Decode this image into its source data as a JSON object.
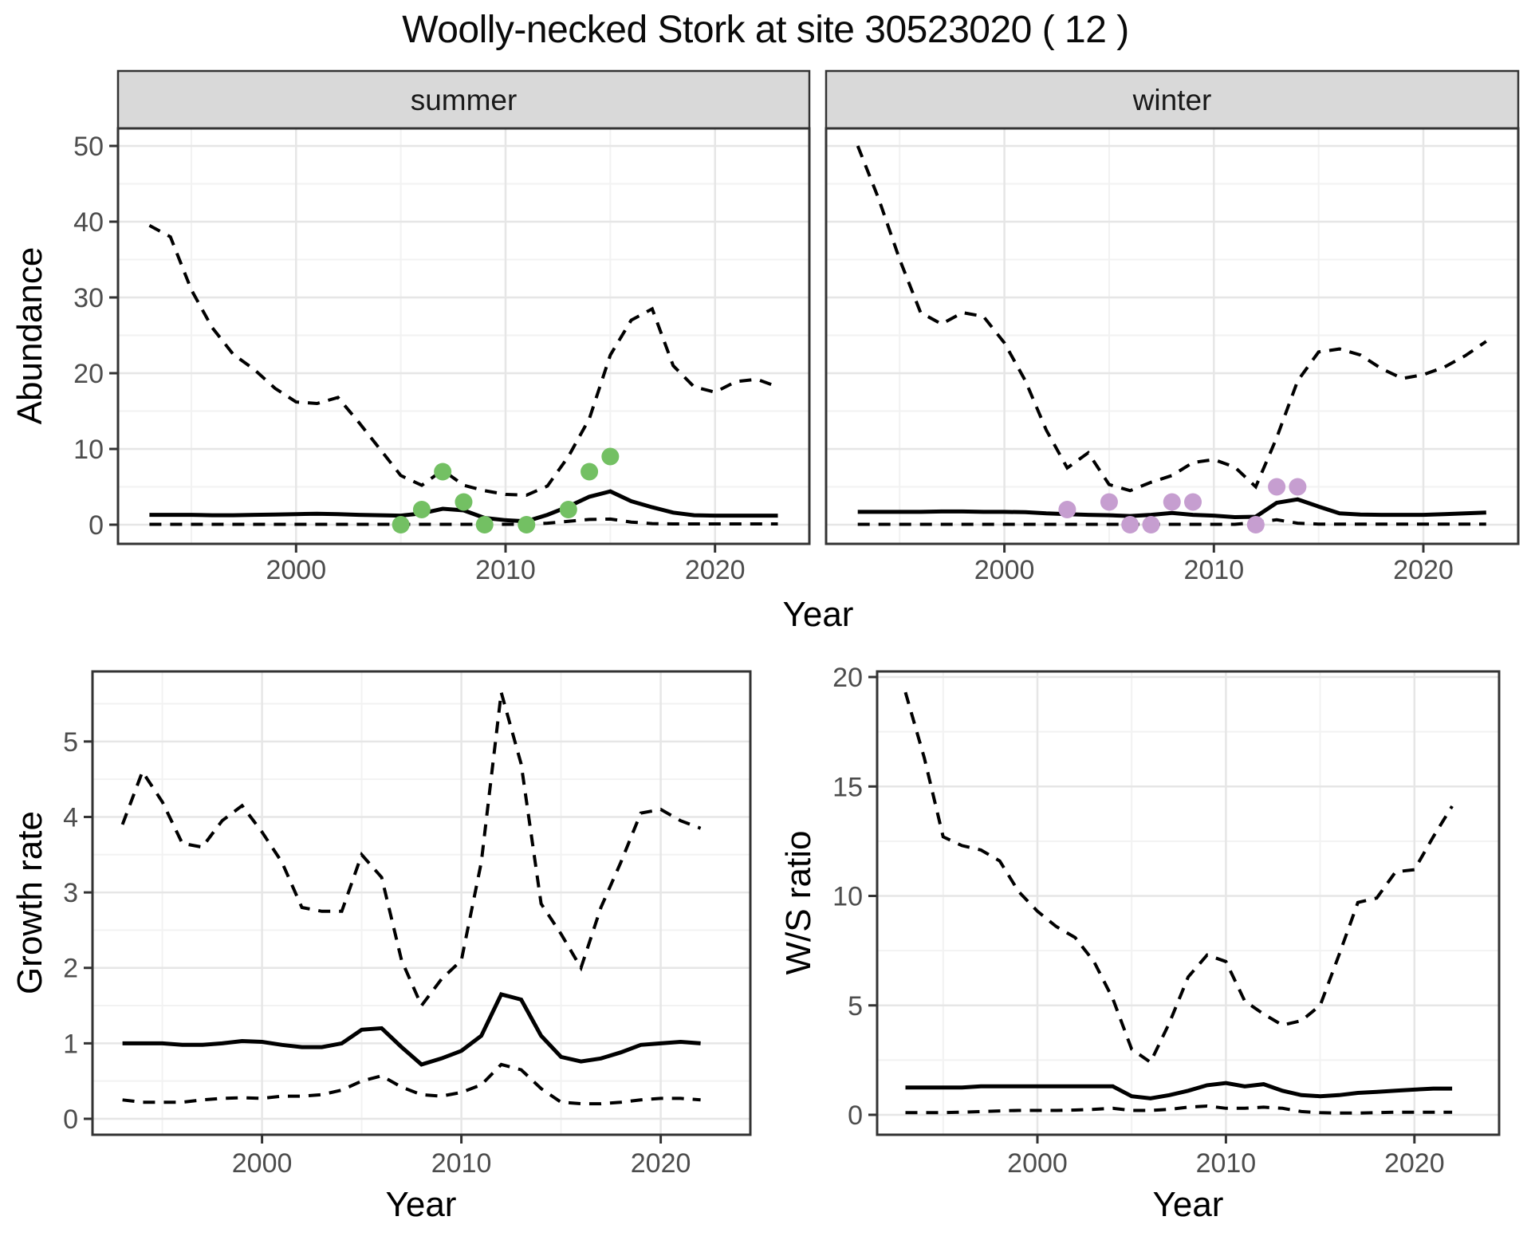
{
  "title": "Woolly-necked Stork at site 30523020 ( 12 )",
  "colors": {
    "summer_point": "#73C063",
    "winter_point": "#C69ED0",
    "line": "#000000",
    "strip_bg": "#D9D9D9",
    "panel_border": "#333333",
    "grid_major": "#E6E6E6",
    "grid_minor": "#F2F2F2",
    "tick_text": "#4D4D4D"
  },
  "chart_data": [
    {
      "type": "line",
      "facet_label": "summer",
      "xlabel": "Year",
      "ylabel": "Abundance",
      "xlim": [
        1991.5,
        2024.5
      ],
      "ylim": [
        0,
        50
      ],
      "xticks": [
        2000,
        2010,
        2020
      ],
      "yticks": [
        0,
        10,
        20,
        30,
        40,
        50
      ],
      "x": [
        1993,
        1994,
        1995,
        1996,
        1997,
        1998,
        1999,
        2000,
        2001,
        2002,
        2003,
        2004,
        2005,
        2006,
        2007,
        2008,
        2009,
        2010,
        2011,
        2012,
        2013,
        2014,
        2015,
        2016,
        2017,
        2018,
        2019,
        2020,
        2021,
        2022,
        2023
      ],
      "series": [
        {
          "name": "upper_95ci",
          "style": "dashed",
          "values": [
            39.5,
            38,
            31,
            26,
            22.5,
            20.5,
            18,
            16.2,
            16,
            16.8,
            13.5,
            10,
            6.5,
            5.2,
            7.2,
            5.2,
            4.5,
            4.0,
            3.9,
            5.1,
            9,
            14,
            22.4,
            27,
            28.5,
            21,
            18.2,
            17.5,
            18.9,
            19.2,
            18.2
          ]
        },
        {
          "name": "median",
          "style": "solid",
          "values": [
            1.3,
            1.3,
            1.3,
            1.25,
            1.25,
            1.3,
            1.35,
            1.4,
            1.45,
            1.4,
            1.3,
            1.25,
            1.2,
            1.5,
            2.1,
            1.9,
            0.9,
            0.6,
            0.45,
            1.3,
            2.4,
            3.7,
            4.4,
            3.1,
            2.3,
            1.6,
            1.25,
            1.2,
            1.2,
            1.2,
            1.2
          ]
        },
        {
          "name": "lower_95ci",
          "style": "dashed",
          "values": [
            0.05,
            0.05,
            0.05,
            0.05,
            0.05,
            0.05,
            0.05,
            0.05,
            0.05,
            0.05,
            0.05,
            0.05,
            0.05,
            0.05,
            0.05,
            0.05,
            0.05,
            0.05,
            0.05,
            0.2,
            0.45,
            0.7,
            0.75,
            0.35,
            0.15,
            0.1,
            0.1,
            0.1,
            0.1,
            0.1,
            0.1
          ]
        }
      ],
      "points": {
        "name": "observed-count",
        "color": "#73C063",
        "xy": [
          [
            2005,
            0
          ],
          [
            2006,
            2
          ],
          [
            2007,
            7
          ],
          [
            2008,
            3
          ],
          [
            2009,
            0
          ],
          [
            2011,
            0
          ],
          [
            2013,
            2
          ],
          [
            2014,
            7
          ],
          [
            2015,
            9
          ]
        ]
      }
    },
    {
      "type": "line",
      "facet_label": "winter",
      "xlabel": "Year",
      "ylabel": "Abundance",
      "xlim": [
        1991.5,
        2024.5
      ],
      "ylim": [
        0,
        50
      ],
      "xticks": [
        2000,
        2010,
        2020
      ],
      "yticks": [
        0,
        10,
        20,
        30,
        40,
        50
      ],
      "x": [
        1993,
        1994,
        1995,
        1996,
        1997,
        1998,
        1999,
        2000,
        2001,
        2002,
        2003,
        2004,
        2005,
        2006,
        2007,
        2008,
        2009,
        2010,
        2011,
        2012,
        2013,
        2014,
        2015,
        2016,
        2017,
        2018,
        2019,
        2020,
        2021,
        2022,
        2023
      ],
      "series": [
        {
          "name": "upper_95ci",
          "style": "dashed",
          "values": [
            50,
            43,
            35,
            28,
            26.5,
            28,
            27.5,
            24,
            19,
            12.5,
            7.5,
            9.5,
            5.3,
            4.5,
            5.6,
            6.5,
            8.2,
            8.6,
            7.6,
            5.0,
            11.5,
            19,
            22.8,
            23.2,
            22.4,
            20.6,
            19.3,
            19.8,
            20.8,
            22.3,
            24.2
          ]
        },
        {
          "name": "median",
          "style": "solid",
          "values": [
            1.7,
            1.7,
            1.7,
            1.7,
            1.75,
            1.75,
            1.7,
            1.7,
            1.65,
            1.5,
            1.4,
            1.3,
            1.25,
            1.15,
            1.3,
            1.55,
            1.3,
            1.2,
            1.0,
            1.05,
            2.9,
            3.35,
            2.4,
            1.5,
            1.35,
            1.3,
            1.3,
            1.3,
            1.4,
            1.5,
            1.6
          ]
        },
        {
          "name": "lower_95ci",
          "style": "dashed",
          "values": [
            0.05,
            0.05,
            0.05,
            0.05,
            0.05,
            0.05,
            0.05,
            0.05,
            0.05,
            0.05,
            0.05,
            0.05,
            0.05,
            0.05,
            0.05,
            0.05,
            0.05,
            0.05,
            0.05,
            0.3,
            0.65,
            0.2,
            0.08,
            0.08,
            0.08,
            0.08,
            0.08,
            0.08,
            0.08,
            0.08,
            0.08
          ]
        }
      ],
      "points": {
        "name": "observed-count",
        "color": "#C69ED0",
        "xy": [
          [
            2003,
            2
          ],
          [
            2005,
            3
          ],
          [
            2006,
            0
          ],
          [
            2007,
            0
          ],
          [
            2008,
            3
          ],
          [
            2009,
            3
          ],
          [
            2012,
            0
          ],
          [
            2013,
            5
          ],
          [
            2014,
            5
          ]
        ]
      }
    },
    {
      "type": "line",
      "facet_label": "",
      "xlabel": "Year",
      "ylabel": "Growth rate",
      "xlim": [
        1991.5,
        2024.5
      ],
      "ylim": [
        0,
        5.65
      ],
      "xticks": [
        2000,
        2010,
        2020
      ],
      "yticks": [
        0,
        1,
        2,
        3,
        4,
        5
      ],
      "x": [
        1993,
        1994,
        1995,
        1996,
        1997,
        1998,
        1999,
        2000,
        2001,
        2002,
        2003,
        2004,
        2005,
        2006,
        2007,
        2008,
        2009,
        2010,
        2011,
        2012,
        2013,
        2014,
        2015,
        2016,
        2017,
        2018,
        2019,
        2020,
        2021,
        2022
      ],
      "series": [
        {
          "name": "upper_95ci",
          "style": "dashed",
          "values": [
            3.9,
            4.6,
            4.2,
            3.65,
            3.6,
            3.95,
            4.15,
            3.8,
            3.4,
            2.8,
            2.75,
            2.75,
            3.5,
            3.2,
            2.1,
            1.5,
            1.85,
            2.1,
            3.4,
            5.65,
            4.7,
            2.85,
            2.45,
            2.0,
            2.8,
            3.4,
            4.05,
            4.1,
            3.95,
            3.85
          ]
        },
        {
          "name": "median",
          "style": "solid",
          "values": [
            1.0,
            1.0,
            1.0,
            0.98,
            0.98,
            1.0,
            1.03,
            1.02,
            0.98,
            0.95,
            0.95,
            1.0,
            1.18,
            1.2,
            0.95,
            0.72,
            0.8,
            0.9,
            1.1,
            1.65,
            1.58,
            1.1,
            0.82,
            0.76,
            0.8,
            0.88,
            0.98,
            1.0,
            1.02,
            1.0
          ]
        },
        {
          "name": "lower_95ci",
          "style": "dashed",
          "values": [
            0.25,
            0.22,
            0.22,
            0.22,
            0.25,
            0.27,
            0.28,
            0.27,
            0.3,
            0.3,
            0.32,
            0.38,
            0.5,
            0.57,
            0.42,
            0.32,
            0.3,
            0.35,
            0.45,
            0.72,
            0.65,
            0.4,
            0.22,
            0.2,
            0.2,
            0.22,
            0.25,
            0.27,
            0.27,
            0.25
          ]
        }
      ],
      "points": null
    },
    {
      "type": "line",
      "facet_label": "",
      "xlabel": "Year",
      "ylabel": "W/S ratio",
      "xlim": [
        1991.5,
        2024.5
      ],
      "ylim": [
        0,
        20
      ],
      "xticks": [
        2000,
        2010,
        2020
      ],
      "yticks": [
        0,
        5,
        10,
        15,
        20
      ],
      "x": [
        1993,
        1994,
        1995,
        1996,
        1997,
        1998,
        1999,
        2000,
        2001,
        2002,
        2003,
        2004,
        2005,
        2006,
        2007,
        2008,
        2009,
        2010,
        2011,
        2012,
        2013,
        2014,
        2015,
        2016,
        2017,
        2018,
        2019,
        2020,
        2021,
        2022
      ],
      "series": [
        {
          "name": "upper_95ci",
          "style": "dashed",
          "values": [
            19.3,
            16.3,
            12.7,
            12.3,
            12.1,
            11.6,
            10.2,
            9.3,
            8.6,
            8.1,
            7.0,
            5.3,
            3.0,
            2.4,
            4.2,
            6.3,
            7.3,
            7.0,
            5.2,
            4.6,
            4.1,
            4.3,
            5.0,
            7.3,
            9.7,
            9.9,
            11.1,
            11.2,
            12.7,
            14.1
          ]
        },
        {
          "name": "median",
          "style": "solid",
          "values": [
            1.25,
            1.25,
            1.25,
            1.25,
            1.3,
            1.3,
            1.3,
            1.3,
            1.3,
            1.3,
            1.3,
            1.3,
            0.85,
            0.75,
            0.9,
            1.1,
            1.35,
            1.45,
            1.3,
            1.4,
            1.1,
            0.9,
            0.85,
            0.9,
            1.0,
            1.05,
            1.1,
            1.15,
            1.2,
            1.2
          ]
        },
        {
          "name": "lower_95ci",
          "style": "dashed",
          "values": [
            0.1,
            0.1,
            0.1,
            0.12,
            0.15,
            0.18,
            0.2,
            0.2,
            0.2,
            0.22,
            0.25,
            0.3,
            0.2,
            0.2,
            0.25,
            0.35,
            0.4,
            0.3,
            0.3,
            0.35,
            0.3,
            0.15,
            0.1,
            0.08,
            0.08,
            0.1,
            0.12,
            0.12,
            0.12,
            0.12
          ]
        }
      ],
      "points": null
    }
  ]
}
